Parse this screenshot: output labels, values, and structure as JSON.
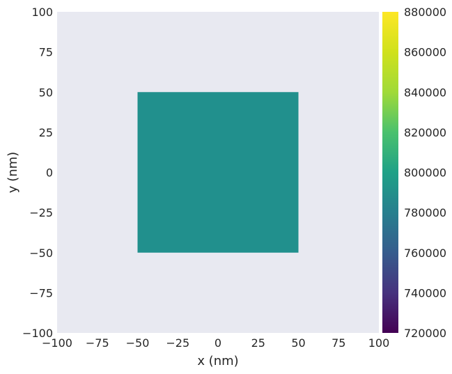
{
  "chart_data": {
    "type": "heatmap",
    "title": "",
    "xlabel": "x (nm)",
    "ylabel": "y (nm)",
    "xlim": [
      -100,
      100
    ],
    "ylim": [
      -100,
      100
    ],
    "x_ticks": [
      -100,
      -75,
      -50,
      -25,
      0,
      25,
      50,
      75,
      100
    ],
    "y_ticks": [
      -100,
      -75,
      -50,
      -25,
      0,
      25,
      50,
      75,
      100
    ],
    "x_tick_labels": [
      "−100",
      "−75",
      "−50",
      "−25",
      "0",
      "25",
      "50",
      "75",
      "100"
    ],
    "y_tick_labels": [
      "−100",
      "−75",
      "−50",
      "−25",
      "0",
      "25",
      "50",
      "75",
      "100"
    ],
    "grid": false,
    "background_color": "#e8e9f1",
    "regions": [
      {
        "x": [
          -50,
          50
        ],
        "y": [
          -50,
          50
        ],
        "value": 800000,
        "color": "#21908d"
      }
    ],
    "colorbar": {
      "colormap": "viridis",
      "range": [
        720000,
        880000
      ],
      "ticks": [
        720000,
        740000,
        760000,
        780000,
        800000,
        820000,
        840000,
        860000,
        880000
      ],
      "tick_labels": [
        "720000",
        "740000",
        "760000",
        "780000",
        "800000",
        "820000",
        "840000",
        "860000",
        "880000"
      ]
    }
  }
}
